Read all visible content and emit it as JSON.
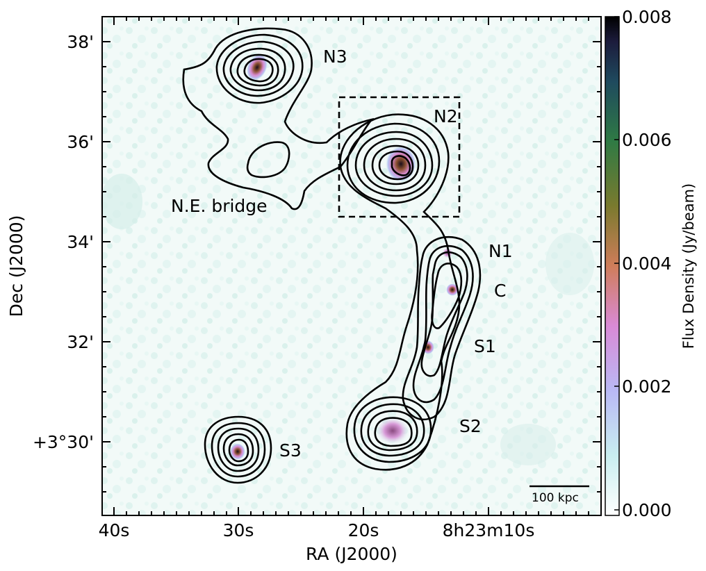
{
  "figure": {
    "x_axis_label": "RA (J2000)",
    "y_axis_label": "Dec (J2000)",
    "x_ticks": [
      "40s",
      "30s",
      "20s",
      "8h23m10s"
    ],
    "y_ticks": [
      "38'",
      "36'",
      "34'",
      "32'",
      "+3°30'"
    ],
    "colorbar": {
      "label": "Flux Density (Jy/beam)",
      "ticks": [
        "0.008",
        "0.006",
        "0.004",
        "0.002",
        "0.000"
      ],
      "range": [
        0.0,
        0.008
      ],
      "colormap": "cubehelix_r"
    },
    "scale_bar_label": "100 kpc",
    "sources": [
      {
        "name": "N3"
      },
      {
        "name": "N2"
      },
      {
        "name": "N.E. bridge"
      },
      {
        "name": "N1"
      },
      {
        "name": "C"
      },
      {
        "name": "S1"
      },
      {
        "name": "S2"
      },
      {
        "name": "S3"
      }
    ],
    "colors": {
      "background_noise": "#e6f5f1",
      "contour": "#000000"
    }
  }
}
